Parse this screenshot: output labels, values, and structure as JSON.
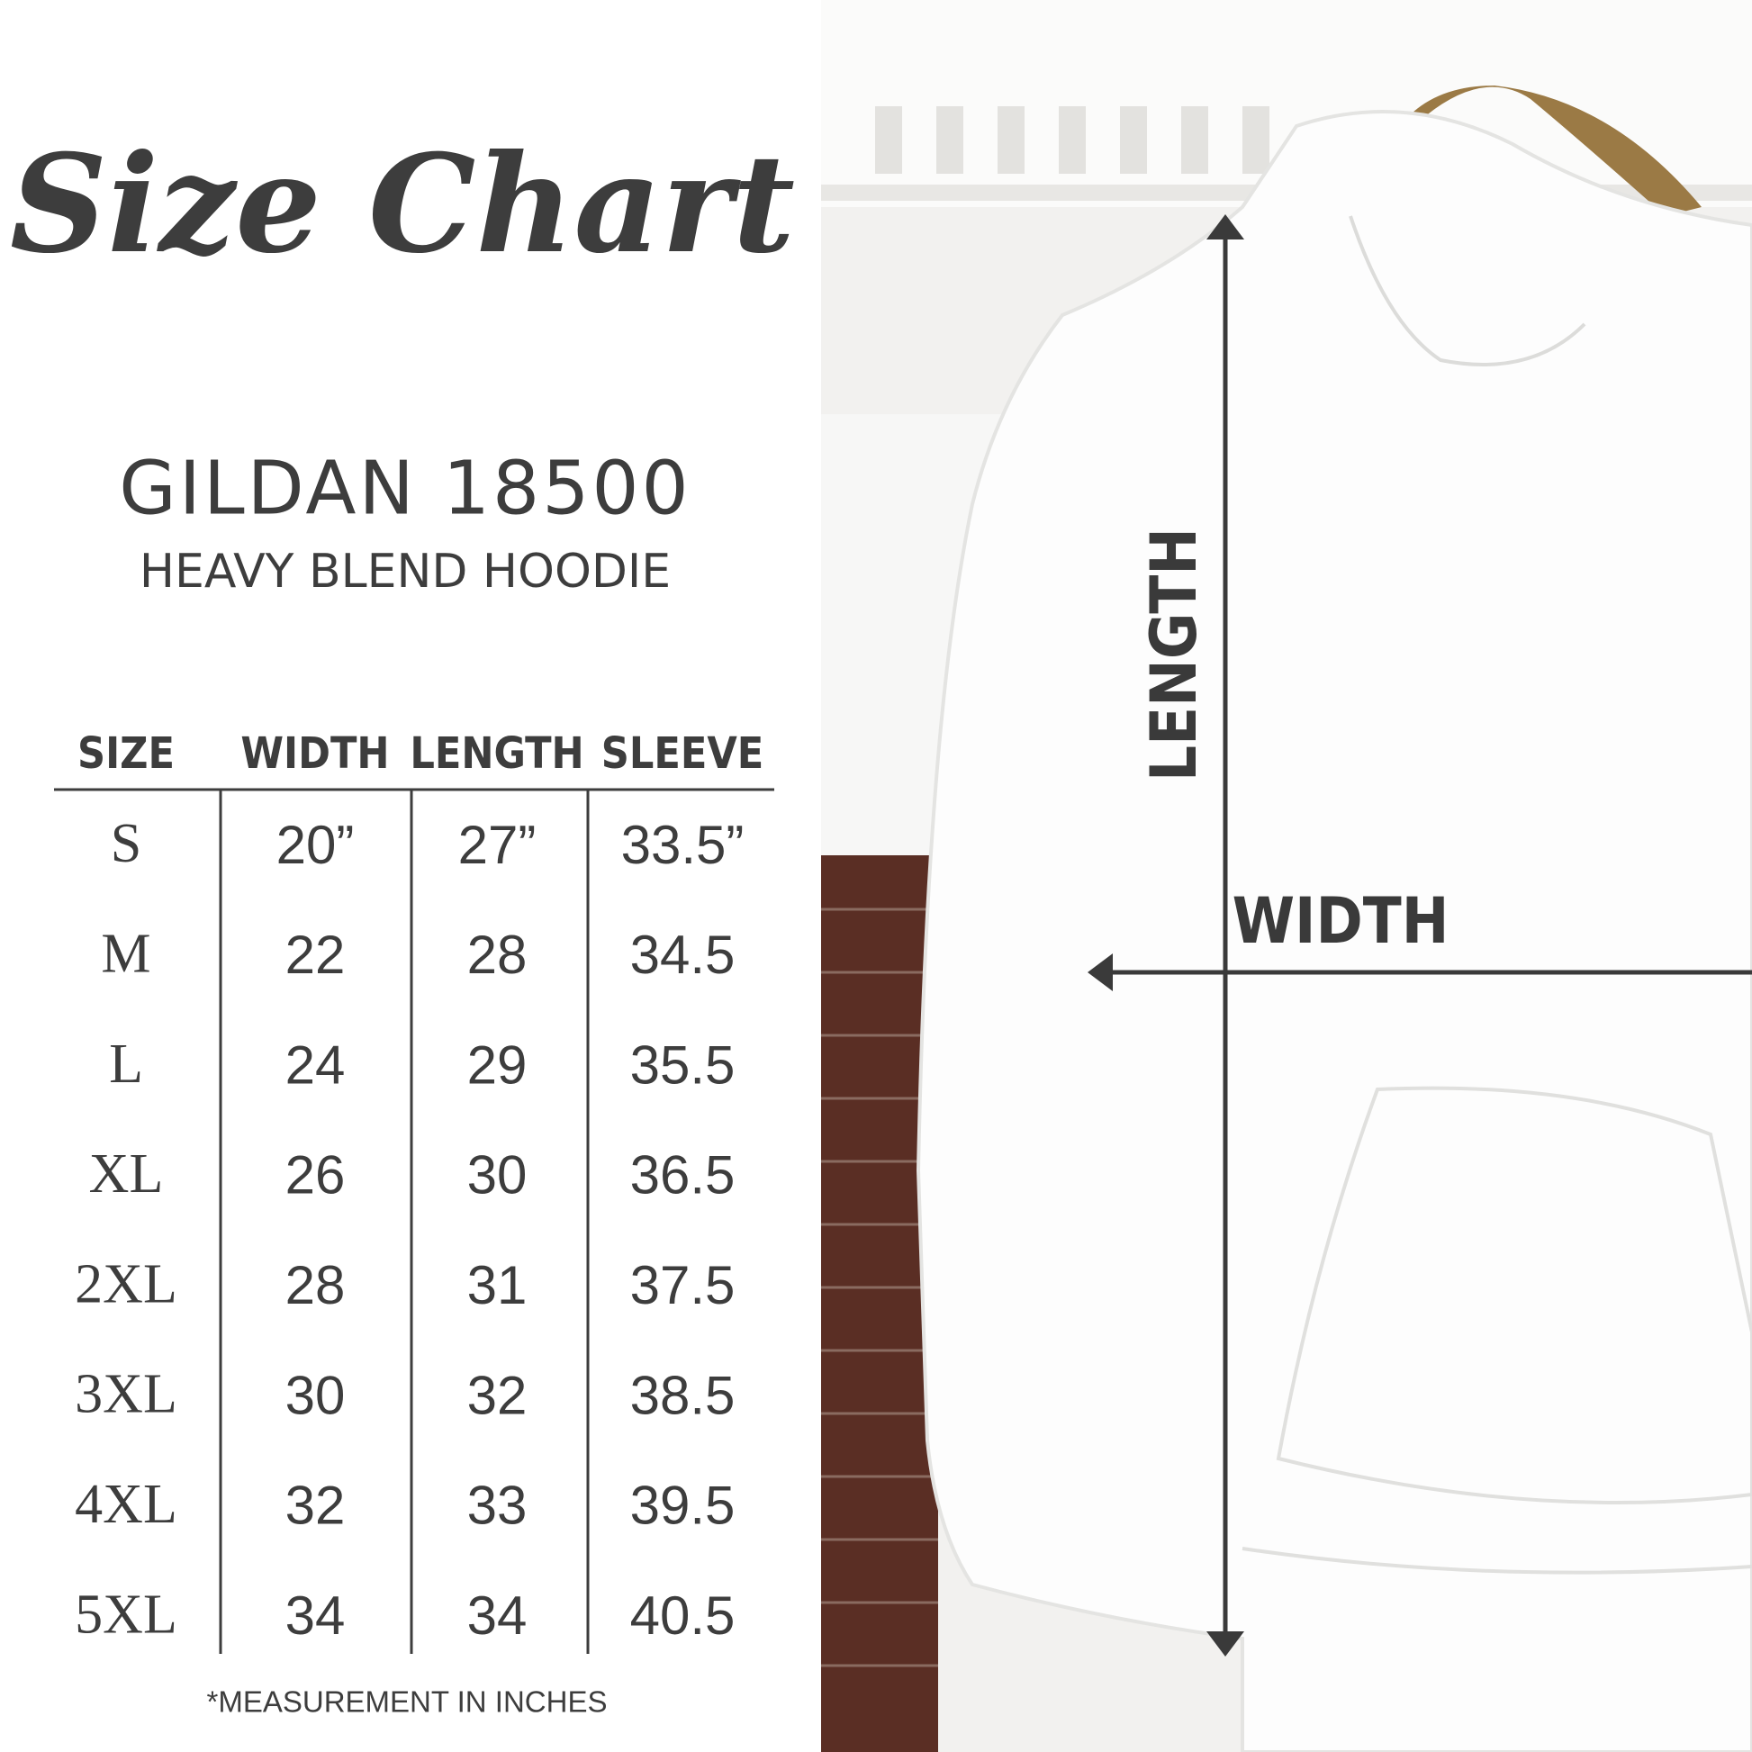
{
  "title": "Size Chart",
  "product": {
    "name": "GILDAN 18500",
    "subtitle": "HEAVY BLEND HOODIE"
  },
  "table": {
    "header": [
      "SIZE",
      "WIDTH",
      "LENGTH",
      "SLEEVE"
    ],
    "rows": [
      [
        "S",
        "20”",
        "27”",
        "33.5”"
      ],
      [
        "M",
        "22",
        "28",
        "34.5"
      ],
      [
        "L",
        "24",
        "29",
        "35.5"
      ],
      [
        "XL",
        "26",
        "30",
        "36.5"
      ],
      [
        "2XL",
        "28",
        "31",
        "37.5"
      ],
      [
        "3XL",
        "30",
        "32",
        "38.5"
      ],
      [
        "4XL",
        "32",
        "33",
        "39.5"
      ],
      [
        "5XL",
        "34",
        "34",
        "40.5"
      ]
    ]
  },
  "note": "*MEASUREMENT IN INCHES",
  "labels": {
    "length": "LENGTH",
    "width": "WIDTH"
  }
}
